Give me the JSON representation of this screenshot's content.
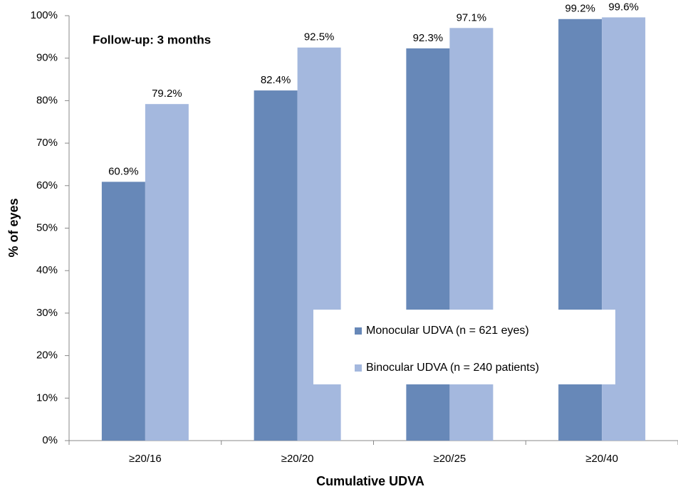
{
  "chart_data": {
    "type": "bar",
    "annotation": "Follow-up: 3 months",
    "x_label": "Cumulative UDVA",
    "y_label": "% of eyes",
    "categories": [
      "≥20/16",
      "≥20/20",
      "≥20/25",
      "≥20/40"
    ],
    "series": [
      {
        "name": "Monocular UDVA (n = 621 eyes)",
        "color": "#6788b8",
        "values": [
          60.9,
          82.4,
          92.3,
          99.2
        ],
        "value_labels": [
          "60.9%",
          "82.4%",
          "92.3%",
          "99.2%"
        ]
      },
      {
        "name": "Binocular UDVA (n = 240 patients)",
        "color": "#a4b8de",
        "values": [
          79.2,
          92.5,
          97.1,
          99.6
        ],
        "value_labels": [
          "79.2%",
          "92.5%",
          "97.1%",
          "99.6%"
        ]
      }
    ],
    "ylim": [
      0,
      100
    ],
    "yticks": [
      {
        "value": 0,
        "label": "0%"
      },
      {
        "value": 10,
        "label": "10%"
      },
      {
        "value": 20,
        "label": "20%"
      },
      {
        "value": 30,
        "label": "30%"
      },
      {
        "value": 40,
        "label": "40%"
      },
      {
        "value": 50,
        "label": "50%"
      },
      {
        "value": 60,
        "label": "60%"
      },
      {
        "value": 70,
        "label": "70%"
      },
      {
        "value": 80,
        "label": "80%"
      },
      {
        "value": 90,
        "label": "90%"
      },
      {
        "value": 100,
        "label": "100%"
      }
    ],
    "grid": false,
    "legend": "lower-right"
  }
}
